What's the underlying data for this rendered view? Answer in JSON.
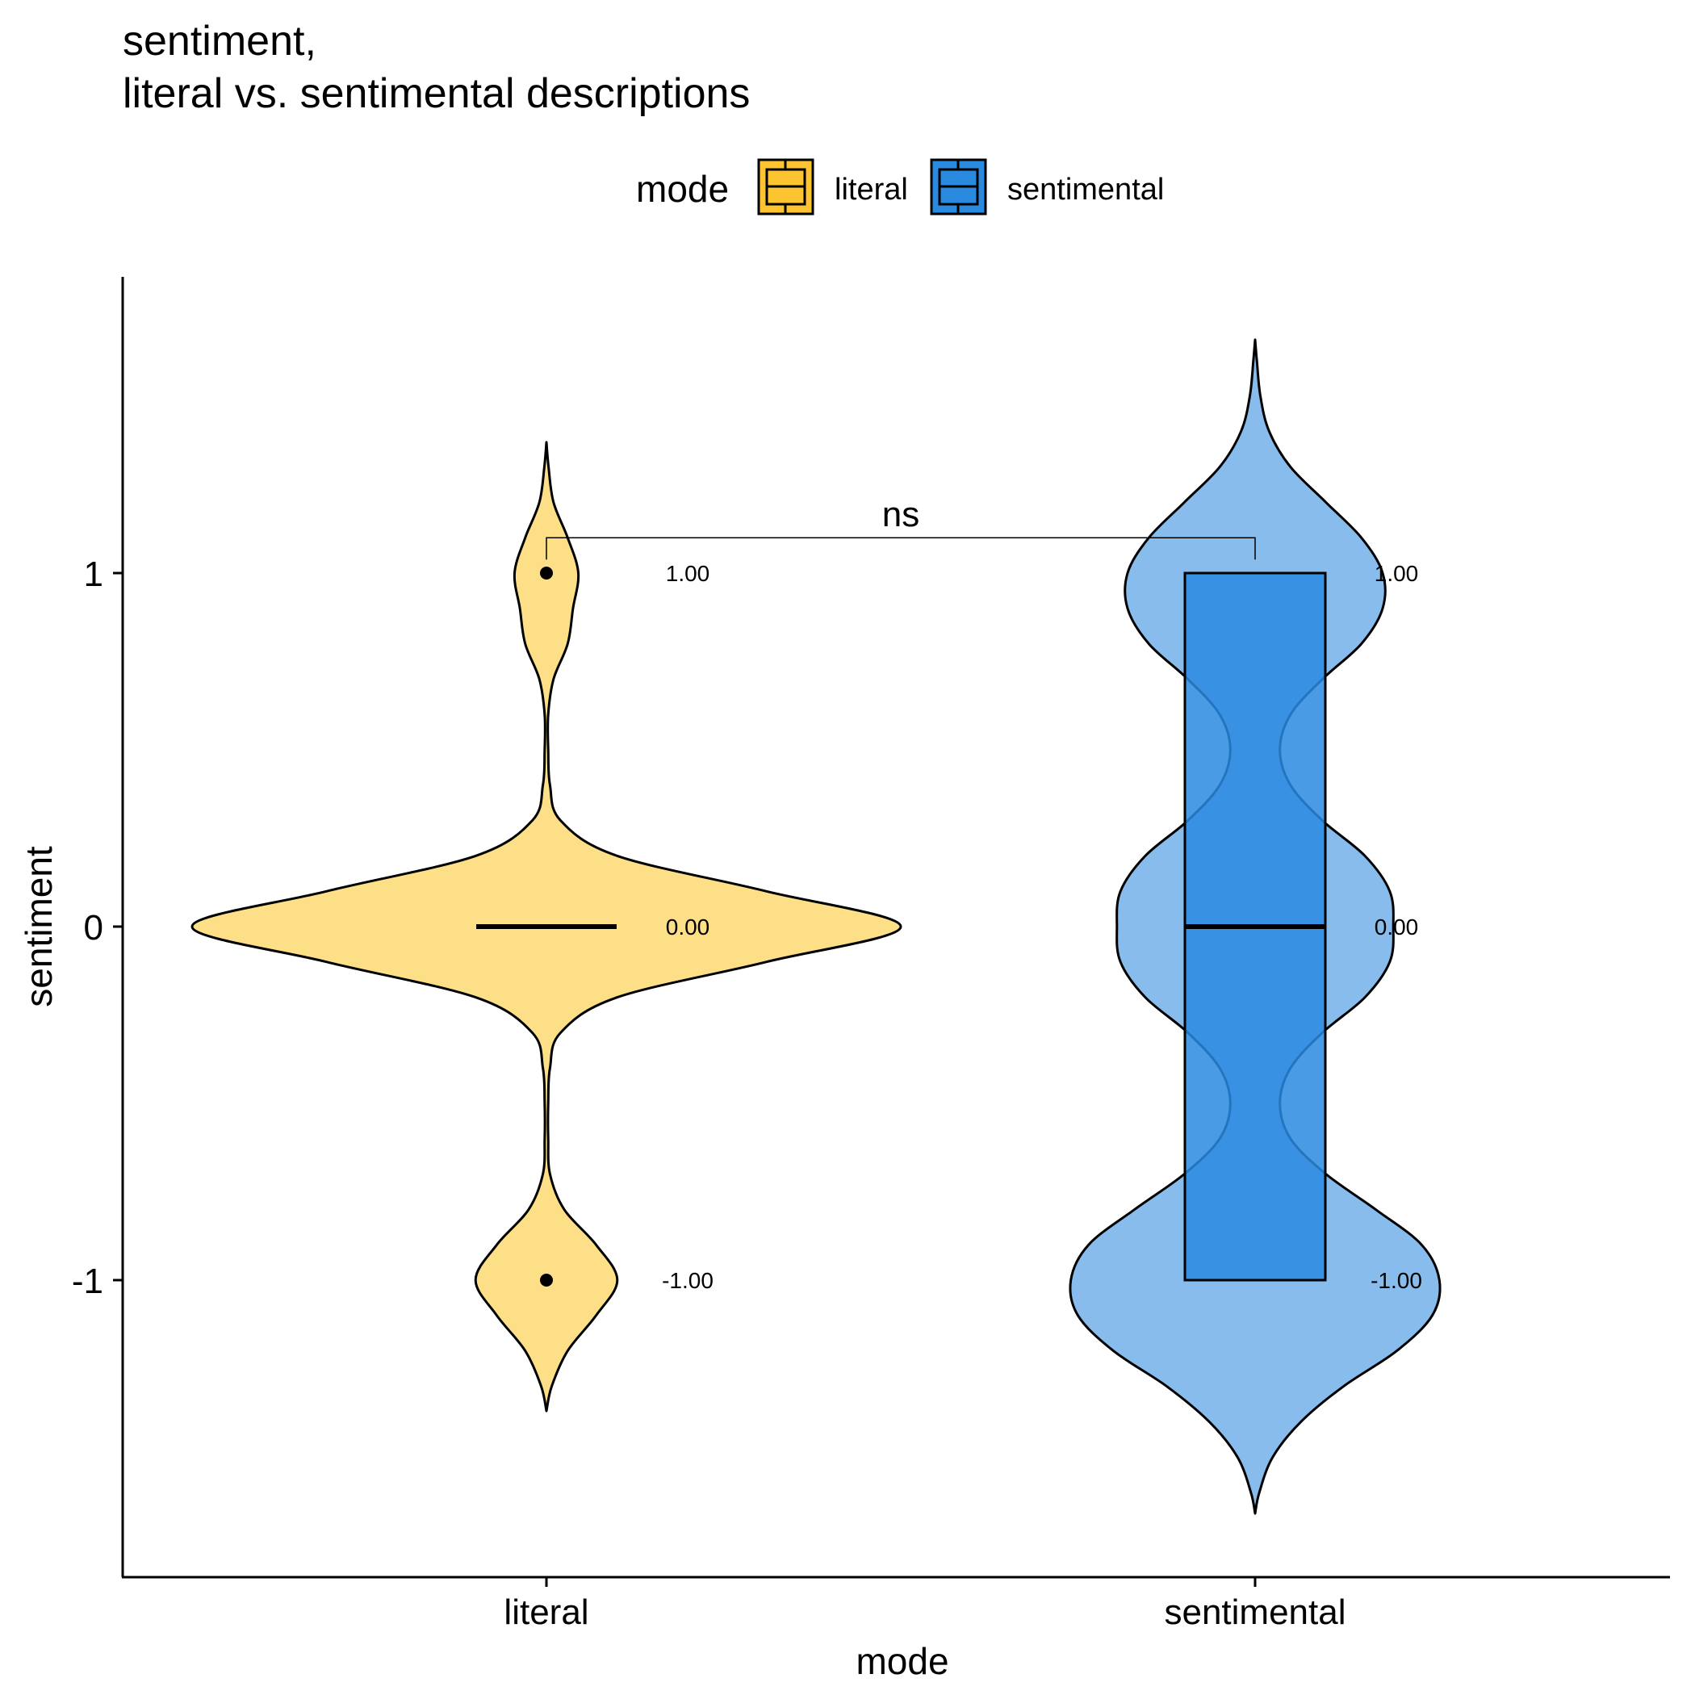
{
  "chart_data": {
    "type": "violin",
    "title_line1": "sentiment,",
    "title_line2": "literal vs. sentimental descriptions",
    "xlabel": "mode",
    "ylabel": "sentiment",
    "categories": [
      "literal",
      "sentimental"
    ],
    "ylim": [
      -1.75,
      1.85
    ],
    "yticks": [
      -1,
      0,
      1
    ],
    "ytick_labels": [
      "-1",
      "0",
      "1"
    ],
    "legend": {
      "title": "mode",
      "position": "top",
      "entries": [
        {
          "label": "literal",
          "color": "#FCC430"
        },
        {
          "label": "sentimental",
          "color": "#2A8AE0"
        }
      ]
    },
    "series": [
      {
        "name": "literal",
        "fill": "#FCDF86",
        "box_fill": "#FCC430",
        "median": 0,
        "q1": 0,
        "q3": 0,
        "outliers": [
          1,
          -1
        ],
        "labels": [
          {
            "value": 1,
            "text": "1.00"
          },
          {
            "value": 0,
            "text": "0.00"
          },
          {
            "value": -1,
            "text": "-1.00"
          }
        ],
        "violin_density": [
          [
            -1.37,
            0.0
          ],
          [
            -1.3,
            0.015
          ],
          [
            -1.2,
            0.06
          ],
          [
            -1.1,
            0.14
          ],
          [
            -1.0,
            0.2
          ],
          [
            -0.9,
            0.14
          ],
          [
            -0.8,
            0.05
          ],
          [
            -0.7,
            0.01
          ],
          [
            -0.6,
            0.005
          ],
          [
            -0.5,
            0.005
          ],
          [
            -0.4,
            0.01
          ],
          [
            -0.3,
            0.04
          ],
          [
            -0.2,
            0.2
          ],
          [
            -0.1,
            0.62
          ],
          [
            0.0,
            1.0
          ],
          [
            0.1,
            0.62
          ],
          [
            0.2,
            0.2
          ],
          [
            0.3,
            0.04
          ],
          [
            0.4,
            0.01
          ],
          [
            0.5,
            0.005
          ],
          [
            0.6,
            0.005
          ],
          [
            0.7,
            0.02
          ],
          [
            0.8,
            0.06
          ],
          [
            0.9,
            0.075
          ],
          [
            1.0,
            0.09
          ],
          [
            1.1,
            0.06
          ],
          [
            1.2,
            0.02
          ],
          [
            1.3,
            0.006
          ],
          [
            1.37,
            0.0
          ]
        ]
      },
      {
        "name": "sentimental",
        "fill": "#88BCEC",
        "box_fill": "#2A8AE0",
        "median": 0,
        "q1": -1,
        "q3": 1,
        "outliers": [],
        "labels": [
          {
            "value": 1,
            "text": "1.00"
          },
          {
            "value": 0,
            "text": "0.00"
          },
          {
            "value": -1,
            "text": "-1.00"
          }
        ],
        "violin_density": [
          [
            -1.66,
            0.0
          ],
          [
            -1.6,
            0.012
          ],
          [
            -1.5,
            0.05
          ],
          [
            -1.4,
            0.13
          ],
          [
            -1.3,
            0.25
          ],
          [
            -1.2,
            0.4
          ],
          [
            -1.1,
            0.5
          ],
          [
            -1.0,
            0.52
          ],
          [
            -0.9,
            0.47
          ],
          [
            -0.8,
            0.34
          ],
          [
            -0.7,
            0.2
          ],
          [
            -0.6,
            0.1
          ],
          [
            -0.5,
            0.07
          ],
          [
            -0.4,
            0.1
          ],
          [
            -0.3,
            0.19
          ],
          [
            -0.2,
            0.31
          ],
          [
            -0.1,
            0.38
          ],
          [
            0.0,
            0.39
          ],
          [
            0.1,
            0.38
          ],
          [
            0.2,
            0.31
          ],
          [
            0.3,
            0.19
          ],
          [
            0.4,
            0.1
          ],
          [
            0.5,
            0.07
          ],
          [
            0.6,
            0.1
          ],
          [
            0.7,
            0.19
          ],
          [
            0.8,
            0.3
          ],
          [
            0.9,
            0.36
          ],
          [
            1.0,
            0.36
          ],
          [
            1.1,
            0.3
          ],
          [
            1.2,
            0.2
          ],
          [
            1.3,
            0.1
          ],
          [
            1.4,
            0.04
          ],
          [
            1.5,
            0.015
          ],
          [
            1.6,
            0.005
          ],
          [
            1.66,
            0.0
          ]
        ]
      }
    ],
    "comparison": {
      "from": "literal",
      "to": "sentimental",
      "label": "ns",
      "y": 1.1
    }
  }
}
